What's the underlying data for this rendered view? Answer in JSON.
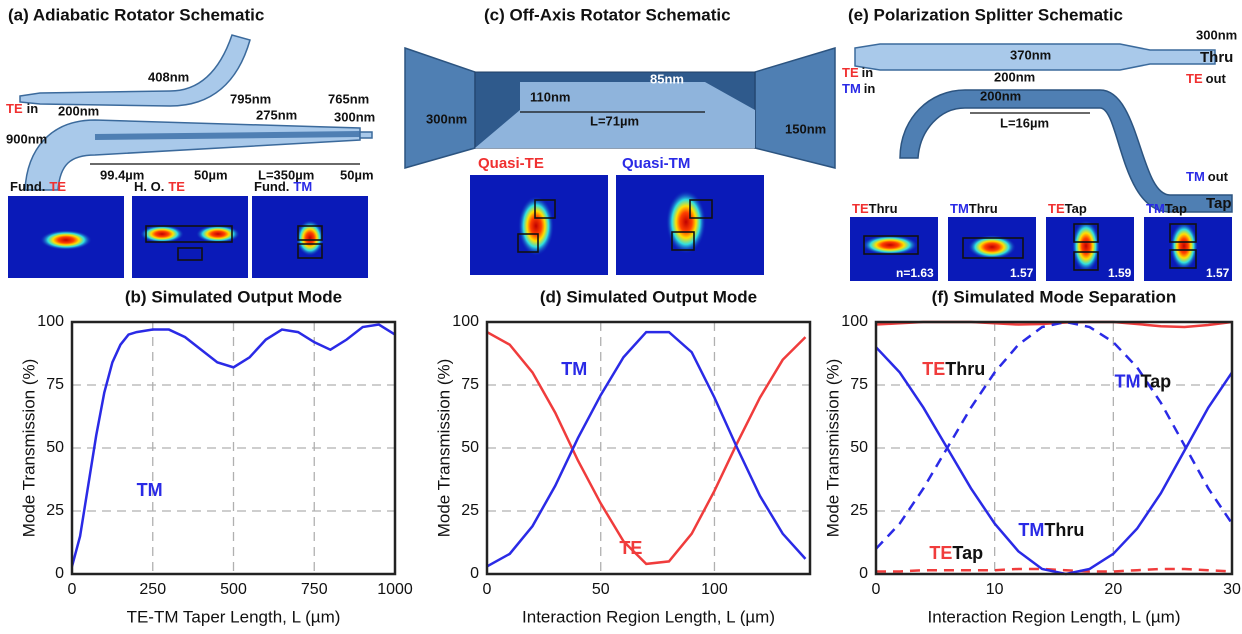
{
  "panels": {
    "a": {
      "title": "(a) Adiabatic Rotator Schematic",
      "dims": [
        "408nm",
        "200nm",
        "795nm",
        "765nm",
        "275nm",
        "300nm",
        "900nm",
        "99.4µm",
        "50µm",
        "L=350µm",
        "50µm"
      ],
      "input": [
        "TE",
        "in"
      ],
      "modes": [
        [
          "Fund.",
          "TE"
        ],
        [
          "H. O.",
          "TE"
        ],
        [
          "Fund.",
          "TM"
        ]
      ]
    },
    "c": {
      "title": "(c) Off-Axis Rotator Schematic",
      "dims": [
        "300nm",
        "85nm",
        "110nm",
        "L=71µm",
        "150nm"
      ],
      "modes": [
        "Quasi-TE",
        "Quasi-TM"
      ]
    },
    "e": {
      "title": "(e) Polarization Splitter Schematic",
      "dims": [
        "300nm",
        "370nm",
        "200nm",
        "200nm",
        "L=16µm"
      ],
      "ports": [
        "Thru",
        "Tap"
      ],
      "io": [
        [
          "TE",
          "in"
        ],
        [
          "TM",
          "in"
        ],
        [
          "TE",
          "out"
        ],
        [
          "TM",
          "out"
        ]
      ],
      "modes": [
        [
          "TE",
          "Thru"
        ],
        [
          "TM",
          "Thru"
        ],
        [
          "TE",
          "Tap"
        ],
        [
          "TM",
          "Tap"
        ]
      ],
      "indices": [
        "n=1.63",
        "1.57",
        "1.59",
        "1.57"
      ]
    }
  },
  "chart_data": [
    {
      "type": "line",
      "title": "(b) Simulated Output Mode",
      "x_label": "TE-TM Taper Length, L (µm)",
      "y_label": "Mode Transmission (%)",
      "x": [
        0,
        25,
        50,
        75,
        100,
        125,
        150,
        175,
        200,
        250,
        300,
        350,
        400,
        450,
        500,
        550,
        600,
        650,
        700,
        750,
        800,
        850,
        900,
        950,
        1000
      ],
      "series": [
        {
          "color": "#2a2ae6",
          "dash": false,
          "values": [
            3,
            15,
            35,
            55,
            72,
            84,
            91,
            95,
            96,
            97,
            97,
            94,
            89,
            84,
            82,
            86,
            93,
            97,
            96,
            92,
            89,
            93,
            98,
            99,
            95
          ]
        }
      ],
      "annotations": [
        [
          {
            "text": "TM",
            "color": "#2a2ae6"
          }
        ]
      ],
      "xlim": [
        0,
        1000
      ],
      "xticks": [
        0,
        250,
        500,
        750,
        1000
      ],
      "ylim": [
        0,
        100
      ],
      "yticks": [
        0,
        25,
        50,
        75,
        100
      ],
      "grid": true
    },
    {
      "type": "line",
      "title": "(d) Simulated Output Mode",
      "x_label": "Interaction Region Length, L (µm)",
      "y_label": "Mode Transmission (%)",
      "x": [
        0,
        10,
        20,
        30,
        40,
        50,
        60,
        70,
        80,
        90,
        100,
        110,
        120,
        130,
        140
      ],
      "series": [
        {
          "color": "#f03c3c",
          "dash": false,
          "values": [
            96,
            91,
            80,
            64,
            45,
            28,
            13,
            4,
            5,
            16,
            33,
            52,
            70,
            85,
            94
          ]
        },
        {
          "color": "#2a2ae6",
          "dash": false,
          "values": [
            3,
            8,
            19,
            35,
            54,
            71,
            86,
            96,
            96,
            88,
            70,
            50,
            31,
            16,
            6
          ]
        }
      ],
      "annotations": [
        [
          {
            "text": "TM",
            "color": "#2a2ae6"
          }
        ],
        [
          {
            "text": "TE",
            "color": "#f03c3c"
          }
        ]
      ],
      "xlim": [
        0,
        142
      ],
      "xticks": [
        0,
        50,
        100
      ],
      "ylim": [
        0,
        100
      ],
      "yticks": [
        0,
        25,
        50,
        75,
        100
      ],
      "grid": true
    },
    {
      "type": "line",
      "title": "(f) Simulated Mode Separation",
      "x_label": "Interaction Region Length, L (µm)",
      "y_label": "Mode Transmission (%)",
      "x": [
        0,
        2,
        4,
        6,
        8,
        10,
        12,
        14,
        16,
        18,
        20,
        22,
        24,
        26,
        28,
        30
      ],
      "series": [
        {
          "color": "#f03c3c",
          "dash": false,
          "values": [
            99,
            99.5,
            100,
            100,
            100,
            99.5,
            99,
            99.2,
            99.8,
            100,
            100,
            99.2,
            98.3,
            98,
            98.8,
            100
          ]
        },
        {
          "color": "#f03c3c",
          "dash": true,
          "values": [
            1,
            1,
            1.5,
            1.5,
            1.5,
            1.5,
            2,
            2,
            1.5,
            1,
            1,
            1.5,
            2,
            2,
            1.5,
            1
          ]
        },
        {
          "color": "#2a2ae6",
          "dash": false,
          "values": [
            90,
            80,
            66,
            50,
            34,
            20,
            9,
            2,
            0,
            2,
            8,
            18,
            32,
            49,
            66,
            80
          ]
        },
        {
          "color": "#2a2ae6",
          "dash": true,
          "values": [
            10,
            20,
            34,
            50,
            66,
            80,
            91,
            98,
            100,
            98,
            92,
            82,
            68,
            51,
            34,
            20
          ]
        }
      ],
      "annotations": [
        [
          {
            "text": "TE",
            "color": "#f03c3c"
          },
          {
            "text": "Thru",
            "color": "#111111"
          }
        ],
        [
          {
            "text": "TM",
            "color": "#2a2ae6"
          },
          {
            "text": "Tap",
            "color": "#111111"
          }
        ],
        [
          {
            "text": "TM",
            "color": "#2a2ae6"
          },
          {
            "text": "Thru",
            "color": "#111111"
          }
        ],
        [
          {
            "text": "TE",
            "color": "#f03c3c"
          },
          {
            "text": "Tap",
            "color": "#111111"
          }
        ]
      ],
      "xlim": [
        0,
        30
      ],
      "xticks": [
        0,
        10,
        20,
        30
      ],
      "ylim": [
        0,
        100
      ],
      "yticks": [
        0,
        25,
        50,
        75,
        100
      ],
      "grid": true
    }
  ]
}
